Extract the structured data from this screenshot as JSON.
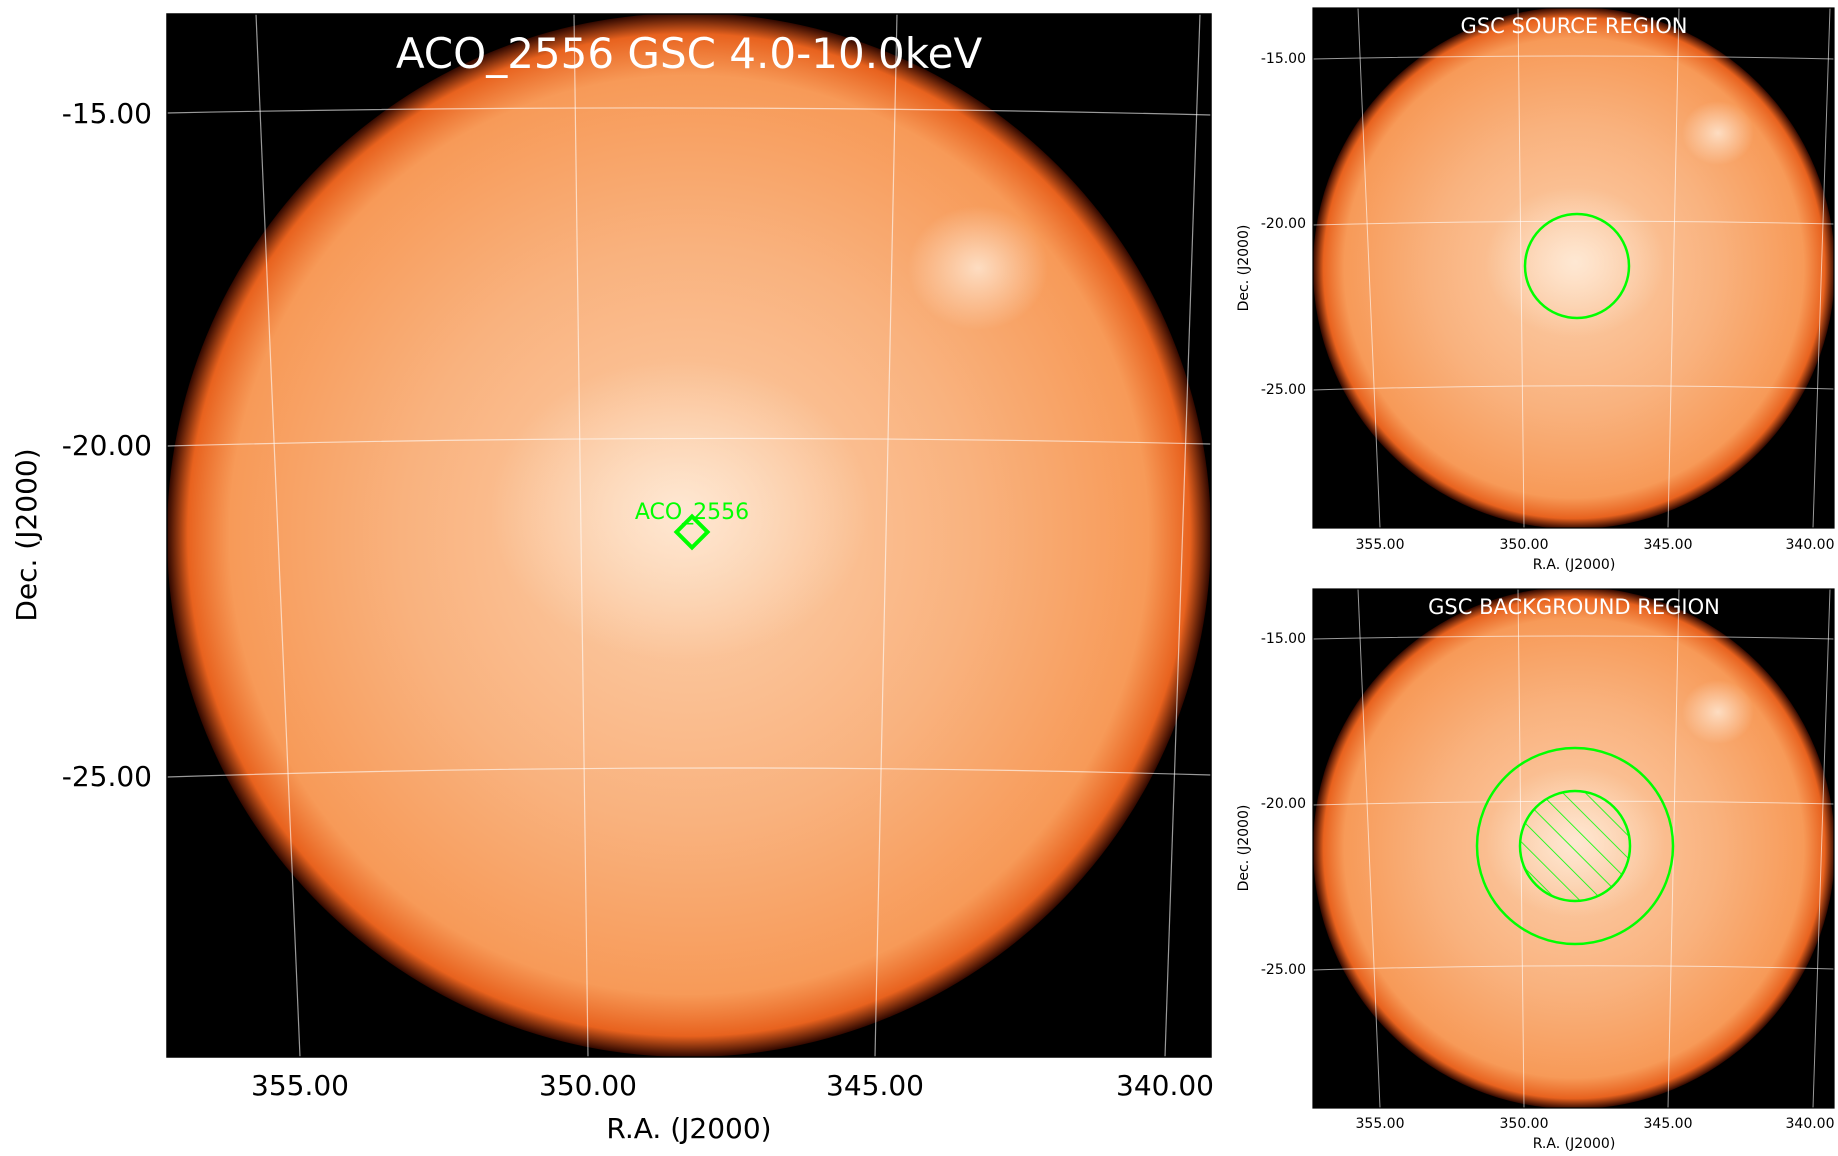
{
  "main_panel": {
    "title": "ACO_2556 GSC 4.0-10.0keV",
    "xlabel": "R.A. (J2000)",
    "ylabel": "Dec. (J2000)",
    "ra_ticks": [
      "355.00",
      "350.00",
      "345.00",
      "340.00"
    ],
    "dec_ticks": [
      "-15.00",
      "-20.00",
      "-25.00"
    ],
    "source_marker": {
      "label": "ACO_2556",
      "ra": 348.2,
      "dec": -21.4,
      "color": "#00ff00"
    }
  },
  "source_panel": {
    "title": "GSC SOURCE REGION",
    "xlabel": "R.A. (J2000)",
    "ylabel": "Dec. (J2000)",
    "ra_ticks": [
      "355.00",
      "350.00",
      "345.00",
      "340.00"
    ],
    "dec_ticks": [
      "-15.00",
      "-20.00",
      "-25.00"
    ]
  },
  "background_panel": {
    "title": "GSC BACKGROUND REGION",
    "xlabel": "R.A. (J2000)",
    "ylabel": "Dec. (J2000)",
    "ra_ticks": [
      "355.00",
      "350.00",
      "345.00",
      "340.00"
    ],
    "dec_ticks": [
      "-15.00",
      "-20.00",
      "-25.00"
    ]
  },
  "colors": {
    "region": "#00ff00",
    "image_center": "#fcd2b0",
    "image_mid": "#f8a466",
    "image_edge": "#e2531a",
    "background": "#000000"
  }
}
